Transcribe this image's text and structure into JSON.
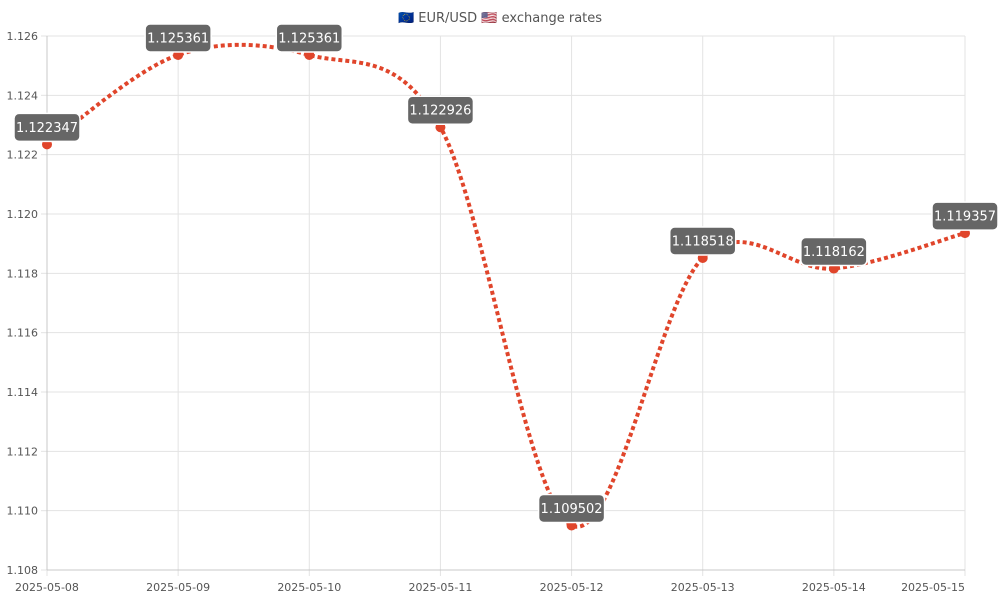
{
  "chart_data": {
    "type": "line",
    "title": "🇪🇺 EUR/USD 🇺🇸 exchange rates",
    "x": [
      "2025-05-08",
      "2025-05-09",
      "2025-05-10",
      "2025-05-11",
      "2025-05-12",
      "2025-05-13",
      "2025-05-14",
      "2025-05-15"
    ],
    "series": [
      {
        "values": [
          1.122347,
          1.125361,
          1.125361,
          1.122926,
          1.109502,
          1.118518,
          1.118162,
          1.119357
        ]
      }
    ],
    "y_ticks": [
      "1.108",
      "1.110",
      "1.112",
      "1.114",
      "1.116",
      "1.118",
      "1.120",
      "1.122",
      "1.124",
      "1.126"
    ],
    "ylim": [
      1.108,
      1.126
    ],
    "data_labels": [
      "1.122347",
      "1.125361",
      "1.125361",
      "1.122926",
      "1.109502",
      "1.118518",
      "1.118162",
      "1.119357"
    ],
    "grid": true,
    "line_style": "dotted",
    "smooth": true,
    "colors": {
      "line": "#e0452b",
      "point": "#e0452b",
      "label_bg": "#666666",
      "label_text": "#ffffff",
      "grid": "#e3e3e3",
      "axis": "#c8c8c8",
      "tick_text": "#555555",
      "title_text": "#555555"
    }
  }
}
